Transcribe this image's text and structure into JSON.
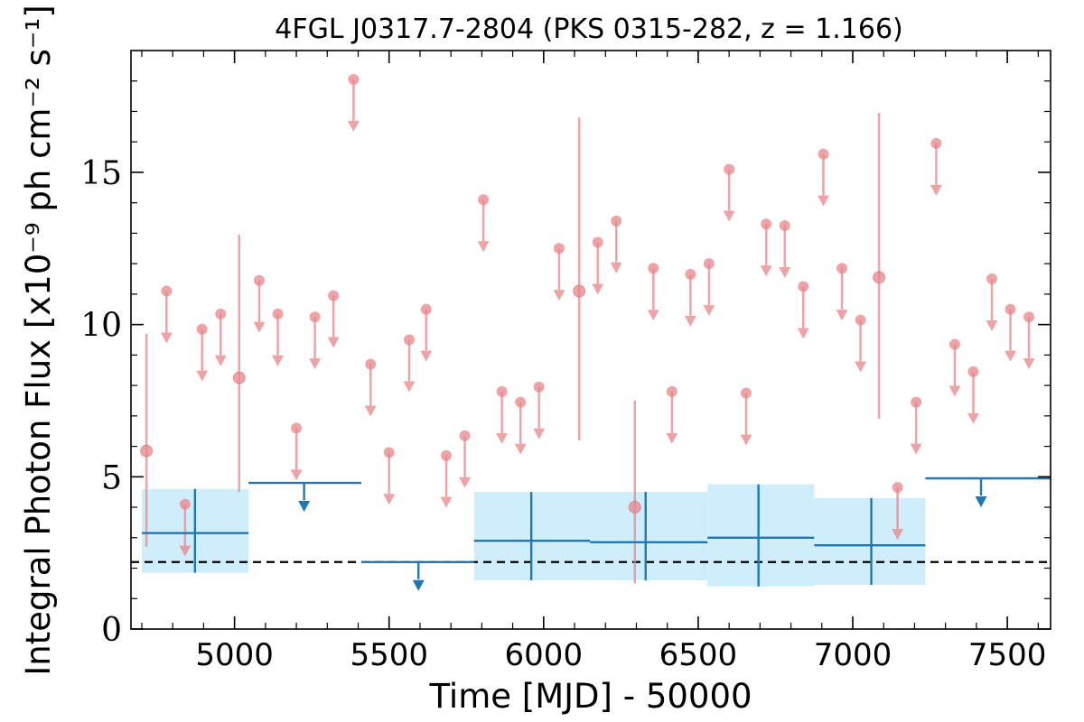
{
  "chart_data": {
    "type": "scatter",
    "title": "4FGL J0317.7-2804 (PKS 0315-282, z = 1.166)",
    "xlabel": "Time [MJD] - 50000",
    "ylabel": "Integral Photon Flux [x10⁻⁹ ph cm⁻² s⁻¹]",
    "xlim": [
      4665,
      7640
    ],
    "ylim": [
      0,
      19
    ],
    "xticks": [
      5000,
      5500,
      6000,
      6500,
      7000,
      7500
    ],
    "xtick_labels": [
      "5000",
      "5500",
      "6000",
      "6500",
      "7000",
      "7500"
    ],
    "yticks": [
      0,
      5,
      10,
      15
    ],
    "ytick_labels": [
      "0",
      "5",
      "10",
      "15"
    ],
    "grid": false,
    "legend": "none",
    "reference_line": {
      "y": 2.2,
      "style": "dashed",
      "color": "#000000"
    },
    "colors": {
      "fine": "#e8868a",
      "coarse": "#1f77b4",
      "band": "#cfeefc"
    },
    "series": [
      {
        "bin": "fine",
        "detections": [
          {
            "x": 4715,
            "y": 5.85,
            "ylo": 2.7,
            "yhi": 9.7
          },
          {
            "x": 5015,
            "y": 8.25,
            "ylo": 4.5,
            "yhi": 12.95
          },
          {
            "x": 6115,
            "y": 11.1,
            "ylo": 6.2,
            "yhi": 16.8
          },
          {
            "x": 6295,
            "y": 4.0,
            "ylo": 1.5,
            "yhi": 7.5
          },
          {
            "x": 7085,
            "y": 11.55,
            "ylo": 6.9,
            "yhi": 16.95
          }
        ],
        "upper_limits": [
          {
            "x": 4780,
            "y": 11.1
          },
          {
            "x": 4840,
            "y": 4.1
          },
          {
            "x": 4895,
            "y": 9.85
          },
          {
            "x": 4955,
            "y": 10.35
          },
          {
            "x": 5080,
            "y": 11.45
          },
          {
            "x": 5140,
            "y": 10.35
          },
          {
            "x": 5200,
            "y": 6.6
          },
          {
            "x": 5260,
            "y": 10.25
          },
          {
            "x": 5320,
            "y": 10.95
          },
          {
            "x": 5385,
            "y": 18.05
          },
          {
            "x": 5440,
            "y": 8.7
          },
          {
            "x": 5500,
            "y": 5.8
          },
          {
            "x": 5565,
            "y": 9.5
          },
          {
            "x": 5620,
            "y": 10.5
          },
          {
            "x": 5685,
            "y": 5.7
          },
          {
            "x": 5745,
            "y": 6.35
          },
          {
            "x": 5805,
            "y": 14.1
          },
          {
            "x": 5865,
            "y": 7.8
          },
          {
            "x": 5925,
            "y": 7.45
          },
          {
            "x": 5985,
            "y": 7.95
          },
          {
            "x": 6050,
            "y": 12.5
          },
          {
            "x": 6175,
            "y": 12.7
          },
          {
            "x": 6235,
            "y": 13.4
          },
          {
            "x": 6355,
            "y": 11.85
          },
          {
            "x": 6415,
            "y": 7.8
          },
          {
            "x": 6475,
            "y": 11.65
          },
          {
            "x": 6535,
            "y": 12.0
          },
          {
            "x": 6600,
            "y": 15.1
          },
          {
            "x": 6655,
            "y": 7.75
          },
          {
            "x": 6720,
            "y": 13.3
          },
          {
            "x": 6780,
            "y": 13.25
          },
          {
            "x": 6840,
            "y": 11.25
          },
          {
            "x": 6905,
            "y": 15.6
          },
          {
            "x": 6965,
            "y": 11.85
          },
          {
            "x": 7025,
            "y": 10.15
          },
          {
            "x": 7145,
            "y": 4.65
          },
          {
            "x": 7205,
            "y": 7.45
          },
          {
            "x": 7270,
            "y": 15.95
          },
          {
            "x": 7330,
            "y": 9.35
          },
          {
            "x": 7390,
            "y": 8.45
          },
          {
            "x": 7450,
            "y": 11.5
          },
          {
            "x": 7510,
            "y": 10.5
          },
          {
            "x": 7570,
            "y": 10.25
          }
        ]
      },
      {
        "bin": "coarse",
        "detections": [
          {
            "x": 4872,
            "y": 3.15,
            "xlo": 4700,
            "xhi": 5045,
            "ylo": 1.85,
            "yhi": 4.6
          },
          {
            "x": 5960,
            "y": 2.9,
            "xlo": 5775,
            "xhi": 6150,
            "ylo": 1.6,
            "yhi": 4.5
          },
          {
            "x": 6330,
            "y": 2.85,
            "xlo": 6150,
            "xhi": 6530,
            "ylo": 1.6,
            "yhi": 4.5
          },
          {
            "x": 6695,
            "y": 3.0,
            "xlo": 6530,
            "xhi": 6875,
            "ylo": 1.4,
            "yhi": 4.75
          },
          {
            "x": 7060,
            "y": 2.75,
            "xlo": 6875,
            "xhi": 7235,
            "ylo": 1.45,
            "yhi": 4.3
          }
        ],
        "upper_limits": [
          {
            "x": 5225,
            "y": 4.8,
            "xlo": 5045,
            "xhi": 5410
          },
          {
            "x": 5595,
            "y": 2.2,
            "xlo": 5410,
            "xhi": 5775
          },
          {
            "x": 7415,
            "y": 4.95,
            "xlo": 7235,
            "xhi": 7640
          }
        ]
      }
    ]
  }
}
